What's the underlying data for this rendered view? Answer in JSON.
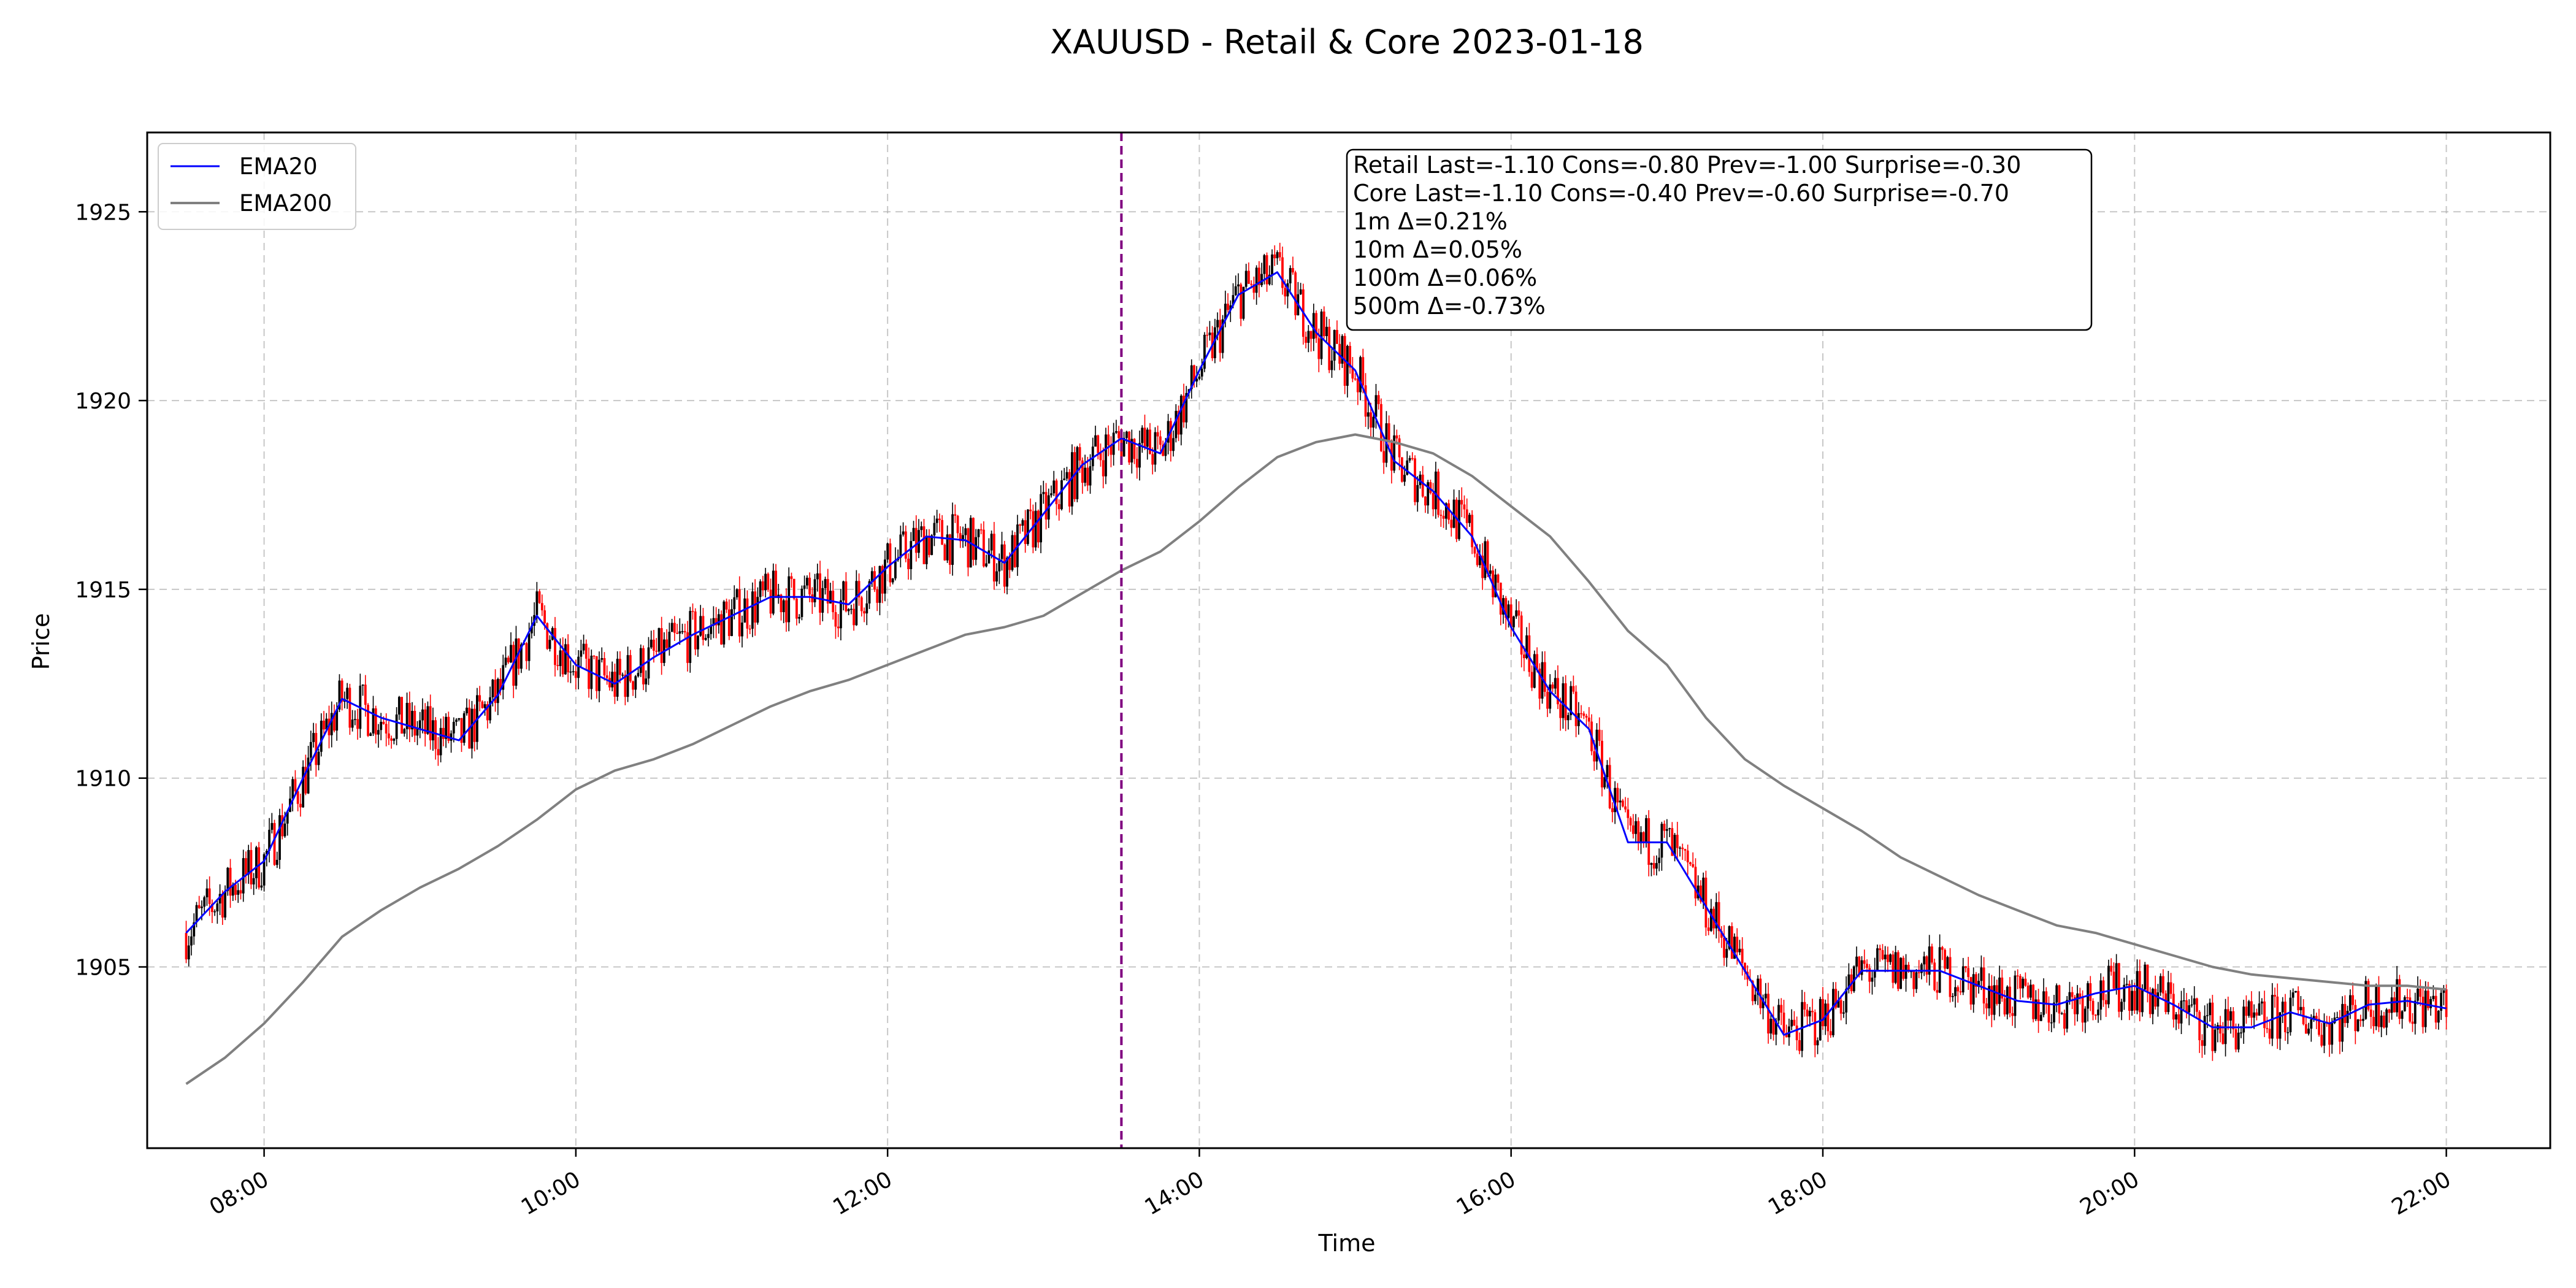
{
  "chart_data": {
    "type": "line",
    "title": "XAUUSD - Retail & Core 2023-01-18",
    "xlabel": "Time",
    "ylabel": "Price",
    "x_ticks": [
      "08:00",
      "10:00",
      "12:00",
      "14:00",
      "16:00",
      "18:00",
      "20:00",
      "22:00"
    ],
    "y_ticks": [
      1905,
      1910,
      1915,
      1920,
      1925
    ],
    "xlim": [
      "07:15",
      "22:40"
    ],
    "ylim": [
      1900.2,
      1927.1
    ],
    "grid": true,
    "legend_position": "top-left",
    "event_time": "13:30",
    "colors": {
      "ema20": "#0000ff",
      "ema200": "#808080",
      "event_line": "#800080",
      "candle_up": "#000000",
      "candle_down": "#ff0000"
    },
    "series": [
      {
        "name": "EMA20",
        "x": [
          "07:30",
          "07:45",
          "08:00",
          "08:15",
          "08:30",
          "08:45",
          "09:00",
          "09:15",
          "09:30",
          "09:45",
          "10:00",
          "10:15",
          "10:30",
          "10:45",
          "11:00",
          "11:15",
          "11:30",
          "11:45",
          "12:00",
          "12:15",
          "12:30",
          "12:45",
          "13:00",
          "13:15",
          "13:30",
          "13:45",
          "14:00",
          "14:15",
          "14:30",
          "14:45",
          "15:00",
          "15:15",
          "15:30",
          "15:45",
          "16:00",
          "16:15",
          "16:30",
          "16:45",
          "17:00",
          "17:15",
          "17:30",
          "17:45",
          "18:00",
          "18:15",
          "18:30",
          "18:45",
          "19:00",
          "19:15",
          "19:30",
          "19:45",
          "20:00",
          "20:15",
          "20:30",
          "20:45",
          "21:00",
          "21:15",
          "21:30",
          "21:45",
          "22:00"
        ],
        "values": [
          1905.9,
          1907.0,
          1907.8,
          1910.0,
          1912.1,
          1911.6,
          1911.3,
          1911.0,
          1912.2,
          1914.3,
          1913.0,
          1912.5,
          1913.2,
          1913.8,
          1914.3,
          1914.8,
          1914.8,
          1914.6,
          1915.6,
          1916.4,
          1916.3,
          1915.7,
          1917.0,
          1918.3,
          1919.0,
          1918.6,
          1920.8,
          1922.8,
          1923.4,
          1921.8,
          1920.8,
          1918.4,
          1917.6,
          1916.4,
          1914.0,
          1912.3,
          1911.3,
          1908.3,
          1908.3,
          1906.6,
          1904.9,
          1903.2,
          1903.6,
          1904.9,
          1904.9,
          1904.9,
          1904.5,
          1904.1,
          1904.0,
          1904.3,
          1904.5,
          1904.0,
          1903.4,
          1903.4,
          1903.8,
          1903.5,
          1904.0,
          1904.1,
          1903.9
        ]
      },
      {
        "name": "EMA200",
        "x": [
          "07:30",
          "07:45",
          "08:00",
          "08:15",
          "08:30",
          "08:45",
          "09:00",
          "09:15",
          "09:30",
          "09:45",
          "10:00",
          "10:15",
          "10:30",
          "10:45",
          "11:00",
          "11:15",
          "11:30",
          "11:45",
          "12:00",
          "12:15",
          "12:30",
          "12:45",
          "13:00",
          "13:15",
          "13:30",
          "13:45",
          "14:00",
          "14:15",
          "14:30",
          "14:45",
          "15:00",
          "15:15",
          "15:30",
          "15:45",
          "16:00",
          "16:15",
          "16:30",
          "16:45",
          "17:00",
          "17:15",
          "17:30",
          "17:45",
          "18:00",
          "18:15",
          "18:30",
          "18:45",
          "19:00",
          "19:15",
          "19:30",
          "19:45",
          "20:00",
          "20:15",
          "20:30",
          "20:45",
          "21:00",
          "21:15",
          "21:30",
          "21:45",
          "22:00"
        ],
        "values": [
          1901.9,
          1902.6,
          1903.5,
          1904.6,
          1905.8,
          1906.5,
          1907.1,
          1907.6,
          1908.2,
          1908.9,
          1909.7,
          1910.2,
          1910.5,
          1910.9,
          1911.4,
          1911.9,
          1912.3,
          1912.6,
          1913.0,
          1913.4,
          1913.8,
          1914.0,
          1914.3,
          1914.9,
          1915.5,
          1916.0,
          1916.8,
          1917.7,
          1918.5,
          1918.9,
          1919.1,
          1918.9,
          1918.6,
          1918.0,
          1917.2,
          1916.4,
          1915.2,
          1913.9,
          1913.0,
          1911.6,
          1910.5,
          1909.8,
          1909.2,
          1908.6,
          1907.9,
          1907.4,
          1906.9,
          1906.5,
          1906.1,
          1905.9,
          1905.6,
          1905.3,
          1905.0,
          1904.8,
          1904.7,
          1904.6,
          1904.5,
          1904.5,
          1904.4
        ]
      }
    ],
    "annotation_lines": [
      "Retail Last=-1.10 Cons=-0.80 Prev=-1.00 Surprise=-0.30",
      "Core Last=-1.10 Cons=-0.40 Prev=-0.60 Surprise=-0.70",
      "1m Δ=0.21%",
      "10m Δ=0.05%",
      "100m Δ=0.06%",
      "500m Δ=-0.73%"
    ]
  }
}
